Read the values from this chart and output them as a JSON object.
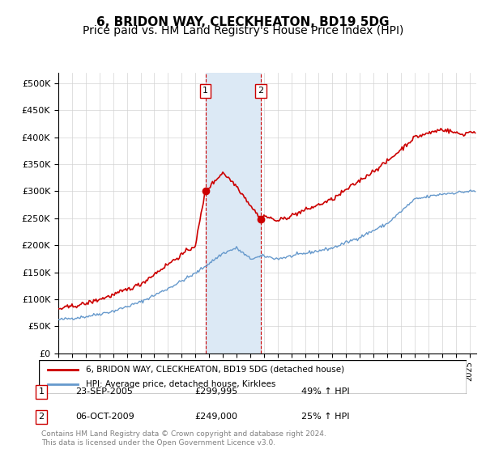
{
  "title": "6, BRIDON WAY, CLECKHEATON, BD19 5DG",
  "subtitle": "Price paid vs. HM Land Registry's House Price Index (HPI)",
  "xlim_start": 1995.0,
  "xlim_end": 2025.5,
  "ylim": [
    0,
    520000
  ],
  "yticks": [
    0,
    50000,
    100000,
    150000,
    200000,
    250000,
    300000,
    350000,
    400000,
    450000,
    500000
  ],
  "ytick_labels": [
    "£0",
    "£50K",
    "£100K",
    "£150K",
    "£200K",
    "£250K",
    "£300K",
    "£350K",
    "£400K",
    "£450K",
    "£500K"
  ],
  "house_color": "#cc0000",
  "hpi_color": "#6699cc",
  "shade_color": "#dce9f5",
  "marker1_date": 2005.73,
  "marker1_price": 299995,
  "marker2_date": 2009.77,
  "marker2_price": 249000,
  "legend_house": "6, BRIDON WAY, CLECKHEATON, BD19 5DG (detached house)",
  "legend_hpi": "HPI: Average price, detached house, Kirklees",
  "table_entries": [
    {
      "num": "1",
      "date": "23-SEP-2005",
      "price": "£299,995",
      "hpi": "49% ↑ HPI"
    },
    {
      "num": "2",
      "date": "06-OCT-2009",
      "price": "£249,000",
      "hpi": "25% ↑ HPI"
    }
  ],
  "footnote": "Contains HM Land Registry data © Crown copyright and database right 2024.\nThis data is licensed under the Open Government Licence v3.0.",
  "title_fontsize": 11,
  "subtitle_fontsize": 10
}
